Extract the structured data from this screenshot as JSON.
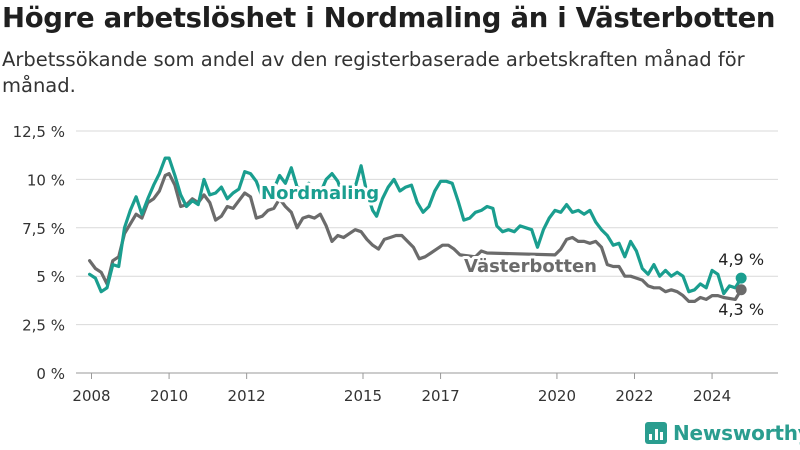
{
  "title": "Högre arbetslöshet i Nordmaling än i Västerbotten",
  "subtitle": "Arbetssökande som andel av den registerbaserade arbetskraften månad för månad.",
  "brand": {
    "name": "Newsworthy",
    "icon": "newsworthy-logo-icon",
    "color": "#2a9d8f"
  },
  "chart_data": {
    "type": "line",
    "title": "",
    "xlabel": "",
    "ylabel": "",
    "ylim": [
      0,
      12.5
    ],
    "xlim": [
      2007.6,
      2025.7
    ],
    "y_ticks": [
      0,
      2.5,
      5,
      7.5,
      10,
      12.5
    ],
    "y_tick_labels": [
      "0 %",
      "2,5 %",
      "5 %",
      "7,5 %",
      "10 %",
      "12,5 %"
    ],
    "x_ticks": [
      2008,
      2010,
      2012,
      2015,
      2017,
      2020,
      2022,
      2024
    ],
    "x_tick_labels": [
      "2008",
      "2010",
      "2012",
      "2015",
      "2017",
      "2020",
      "2022",
      "2024"
    ],
    "grid": true,
    "series": [
      {
        "name": "Nordmaling",
        "color": "#1a9e8f",
        "end_label": "4,9 %",
        "points": [
          [
            2007.95,
            5.1
          ],
          [
            2008.1,
            4.9
          ],
          [
            2008.25,
            4.2
          ],
          [
            2008.4,
            4.4
          ],
          [
            2008.55,
            5.6
          ],
          [
            2008.7,
            5.5
          ],
          [
            2008.85,
            7.5
          ],
          [
            2009.0,
            8.4
          ],
          [
            2009.15,
            9.1
          ],
          [
            2009.3,
            8.2
          ],
          [
            2009.45,
            9.0
          ],
          [
            2009.6,
            9.7
          ],
          [
            2009.75,
            10.3
          ],
          [
            2009.9,
            11.1
          ],
          [
            2010.0,
            11.1
          ],
          [
            2010.15,
            10.2
          ],
          [
            2010.3,
            9.2
          ],
          [
            2010.45,
            8.6
          ],
          [
            2010.6,
            8.9
          ],
          [
            2010.75,
            8.7
          ],
          [
            2010.9,
            10.0
          ],
          [
            2011.05,
            9.2
          ],
          [
            2011.2,
            9.3
          ],
          [
            2011.35,
            9.6
          ],
          [
            2011.5,
            9.0
          ],
          [
            2011.65,
            9.3
          ],
          [
            2011.8,
            9.5
          ],
          [
            2011.95,
            10.4
          ],
          [
            2012.1,
            10.3
          ],
          [
            2012.25,
            9.9
          ],
          [
            2012.4,
            9.1
          ],
          [
            2012.55,
            9.0
          ],
          [
            2012.7,
            9.5
          ],
          [
            2012.85,
            10.2
          ],
          [
            2013.0,
            9.8
          ],
          [
            2013.15,
            10.6
          ],
          [
            2013.3,
            9.6
          ],
          [
            2013.45,
            9.5
          ],
          [
            2013.6,
            9.8
          ],
          [
            2013.75,
            9.0
          ],
          [
            2013.9,
            9.3
          ],
          [
            2014.05,
            10.0
          ],
          [
            2014.2,
            10.3
          ],
          [
            2014.35,
            9.9
          ],
          [
            2014.5,
            9.0
          ],
          [
            2014.65,
            9.2
          ],
          [
            2014.8,
            9.6
          ],
          [
            2014.95,
            10.7
          ],
          [
            2015.1,
            9.3
          ],
          [
            2015.25,
            8.4
          ],
          [
            2015.35,
            8.1
          ],
          [
            2015.5,
            9.0
          ],
          [
            2015.65,
            9.6
          ],
          [
            2015.8,
            10.0
          ],
          [
            2015.95,
            9.4
          ],
          [
            2016.1,
            9.6
          ],
          [
            2016.25,
            9.7
          ],
          [
            2016.4,
            8.8
          ],
          [
            2016.55,
            8.3
          ],
          [
            2016.7,
            8.6
          ],
          [
            2016.85,
            9.4
          ],
          [
            2017.0,
            9.9
          ],
          [
            2017.15,
            9.9
          ],
          [
            2017.3,
            9.8
          ],
          [
            2017.45,
            8.9
          ],
          [
            2017.6,
            7.9
          ],
          [
            2017.75,
            8.0
          ],
          [
            2017.9,
            8.3
          ],
          [
            2018.05,
            8.4
          ],
          [
            2018.2,
            8.6
          ],
          [
            2018.35,
            8.5
          ],
          [
            2018.45,
            7.6
          ],
          [
            2018.6,
            7.3
          ],
          [
            2018.75,
            7.4
          ],
          [
            2018.9,
            7.3
          ],
          [
            2019.05,
            7.6
          ],
          [
            2019.2,
            7.5
          ],
          [
            2019.35,
            7.4
          ],
          [
            2019.5,
            6.5
          ],
          [
            2019.65,
            7.4
          ],
          [
            2019.8,
            8.0
          ],
          [
            2019.95,
            8.4
          ],
          [
            2020.1,
            8.3
          ],
          [
            2020.25,
            8.7
          ],
          [
            2020.4,
            8.3
          ],
          [
            2020.55,
            8.4
          ],
          [
            2020.7,
            8.2
          ],
          [
            2020.85,
            8.4
          ],
          [
            2021.0,
            7.8
          ],
          [
            2021.15,
            7.4
          ],
          [
            2021.3,
            7.1
          ],
          [
            2021.45,
            6.6
          ],
          [
            2021.6,
            6.7
          ],
          [
            2021.75,
            6.0
          ],
          [
            2021.9,
            6.8
          ],
          [
            2022.05,
            6.3
          ],
          [
            2022.2,
            5.4
          ],
          [
            2022.35,
            5.1
          ],
          [
            2022.5,
            5.6
          ],
          [
            2022.65,
            5.0
          ],
          [
            2022.8,
            5.3
          ],
          [
            2022.95,
            5.0
          ],
          [
            2023.1,
            5.2
          ],
          [
            2023.25,
            5.0
          ],
          [
            2023.4,
            4.2
          ],
          [
            2023.55,
            4.3
          ],
          [
            2023.7,
            4.6
          ],
          [
            2023.85,
            4.4
          ],
          [
            2024.0,
            5.3
          ],
          [
            2024.15,
            5.1
          ],
          [
            2024.3,
            4.1
          ],
          [
            2024.45,
            4.5
          ],
          [
            2024.6,
            4.4
          ],
          [
            2024.75,
            4.9
          ]
        ]
      },
      {
        "name": "Västerbotten",
        "color": "#6b6b6b",
        "end_label": "4,3 %",
        "points": [
          [
            2007.95,
            5.8
          ],
          [
            2008.1,
            5.4
          ],
          [
            2008.25,
            5.2
          ],
          [
            2008.4,
            4.6
          ],
          [
            2008.55,
            5.8
          ],
          [
            2008.7,
            6.0
          ],
          [
            2008.85,
            7.2
          ],
          [
            2009.0,
            7.7
          ],
          [
            2009.15,
            8.2
          ],
          [
            2009.3,
            8.0
          ],
          [
            2009.45,
            8.8
          ],
          [
            2009.6,
            9.0
          ],
          [
            2009.75,
            9.4
          ],
          [
            2009.9,
            10.2
          ],
          [
            2010.0,
            10.3
          ],
          [
            2010.15,
            9.7
          ],
          [
            2010.3,
            8.6
          ],
          [
            2010.45,
            8.7
          ],
          [
            2010.6,
            9.0
          ],
          [
            2010.75,
            8.8
          ],
          [
            2010.9,
            9.2
          ],
          [
            2011.05,
            8.8
          ],
          [
            2011.2,
            7.9
          ],
          [
            2011.35,
            8.1
          ],
          [
            2011.5,
            8.6
          ],
          [
            2011.65,
            8.5
          ],
          [
            2011.8,
            8.9
          ],
          [
            2011.95,
            9.3
          ],
          [
            2012.1,
            9.1
          ],
          [
            2012.25,
            8.0
          ],
          [
            2012.4,
            8.1
          ],
          [
            2012.55,
            8.4
          ],
          [
            2012.7,
            8.5
          ],
          [
            2012.85,
            9.0
          ],
          [
            2013.0,
            8.6
          ],
          [
            2013.15,
            8.3
          ],
          [
            2013.3,
            7.5
          ],
          [
            2013.45,
            8.0
          ],
          [
            2013.6,
            8.1
          ],
          [
            2013.75,
            8.0
          ],
          [
            2013.9,
            8.2
          ],
          [
            2014.05,
            7.6
          ],
          [
            2014.2,
            6.8
          ],
          [
            2014.35,
            7.1
          ],
          [
            2014.5,
            7.0
          ],
          [
            2014.65,
            7.2
          ],
          [
            2014.8,
            7.4
          ],
          [
            2014.95,
            7.3
          ],
          [
            2015.1,
            6.9
          ],
          [
            2015.25,
            6.6
          ],
          [
            2015.4,
            6.4
          ],
          [
            2015.55,
            6.9
          ],
          [
            2015.7,
            7.0
          ],
          [
            2015.85,
            7.1
          ],
          [
            2016.0,
            7.1
          ],
          [
            2016.15,
            6.8
          ],
          [
            2016.3,
            6.5
          ],
          [
            2016.45,
            5.9
          ],
          [
            2016.6,
            6.0
          ],
          [
            2016.75,
            6.2
          ],
          [
            2016.9,
            6.4
          ],
          [
            2017.05,
            6.6
          ],
          [
            2017.2,
            6.6
          ],
          [
            2017.35,
            6.4
          ],
          [
            2017.5,
            6.1
          ],
          [
            2017.9,
            6.0
          ],
          [
            2018.05,
            6.3
          ],
          [
            2018.2,
            6.2
          ],
          [
            2019.95,
            6.1
          ],
          [
            2020.1,
            6.4
          ],
          [
            2020.25,
            6.9
          ],
          [
            2020.4,
            7.0
          ],
          [
            2020.55,
            6.8
          ],
          [
            2020.7,
            6.8
          ],
          [
            2020.85,
            6.7
          ],
          [
            2021.0,
            6.8
          ],
          [
            2021.15,
            6.5
          ],
          [
            2021.3,
            5.6
          ],
          [
            2021.45,
            5.5
          ],
          [
            2021.6,
            5.5
          ],
          [
            2021.75,
            5.0
          ],
          [
            2021.9,
            5.0
          ],
          [
            2022.05,
            4.9
          ],
          [
            2022.2,
            4.8
          ],
          [
            2022.35,
            4.5
          ],
          [
            2022.5,
            4.4
          ],
          [
            2022.65,
            4.4
          ],
          [
            2022.8,
            4.2
          ],
          [
            2022.95,
            4.3
          ],
          [
            2023.1,
            4.2
          ],
          [
            2023.25,
            4.0
          ],
          [
            2023.4,
            3.7
          ],
          [
            2023.55,
            3.7
          ],
          [
            2023.7,
            3.9
          ],
          [
            2023.85,
            3.8
          ],
          [
            2024.0,
            4.0
          ],
          [
            2024.15,
            4.0
          ],
          [
            2024.3,
            3.9
          ],
          [
            2024.6,
            3.8
          ],
          [
            2024.75,
            4.3
          ]
        ]
      }
    ]
  }
}
